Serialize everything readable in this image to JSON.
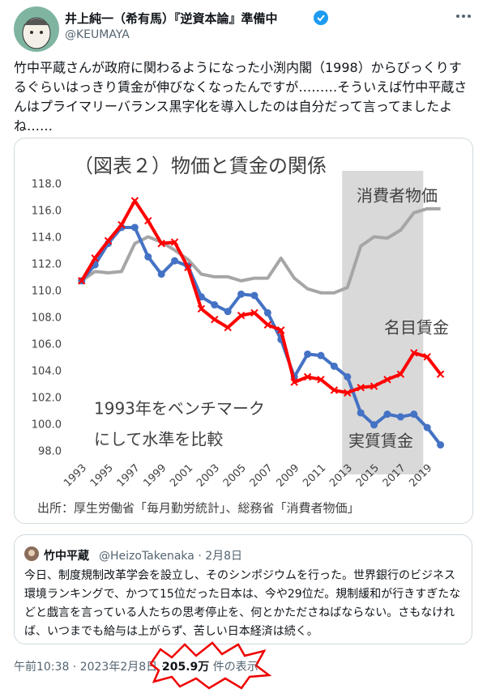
{
  "tweet": {
    "name": "井上純一（希有馬）『逆資本論』準備中",
    "handle": "@KEUMAYA",
    "text": "竹中平蔵さんが政府に関わるようになった小渕内閣（1998）からびっくりするぐらいはっきり賃金が伸びなくなったんですが………そういえば竹中平蔵さんはプライマリーバランス黒字化を導入したのは自分だって言ってましたよね……",
    "timestamp": "午前10:38 · 2023年2月8日 ·",
    "views": "205.9万",
    "views_label": "件の表示"
  },
  "chart_data": {
    "type": "line",
    "title": "（図表２）物価と賃金の関係",
    "source": "出所：厚生労働省「毎月勤労統計」、総務省「消費者物価」",
    "annotation": [
      "1993年をベンチマーク",
      "にして水準を比較"
    ],
    "x": [
      1993,
      1994,
      1995,
      1996,
      1997,
      1998,
      1999,
      2000,
      2001,
      2002,
      2003,
      2004,
      2005,
      2006,
      2007,
      2008,
      2009,
      2010,
      2011,
      2012,
      2013,
      2014,
      2015,
      2016,
      2017,
      2018,
      2019,
      2020
    ],
    "series": [
      {
        "name": "消費者物価",
        "color": "#a6a6a6",
        "marker": "none",
        "values": [
          110.8,
          111.5,
          111.4,
          111.5,
          113.6,
          114.1,
          113.7,
          113.1,
          112.4,
          111.3,
          111.1,
          111.1,
          110.8,
          111.0,
          111.0,
          112.5,
          111.0,
          110.2,
          109.9,
          109.9,
          110.3,
          113.4,
          114.1,
          114.0,
          114.6,
          115.9,
          116.2,
          116.2
        ]
      },
      {
        "name": "実質賃金",
        "color": "#4472c4",
        "marker": "circle",
        "values": [
          110.8,
          112.0,
          113.6,
          114.8,
          114.8,
          112.6,
          111.3,
          112.3,
          111.9,
          109.6,
          109.0,
          108.5,
          109.8,
          109.7,
          108.4,
          106.4,
          103.6,
          105.3,
          105.2,
          104.4,
          103.6,
          100.9,
          100.0,
          100.8,
          100.6,
          100.8,
          99.8,
          98.5
        ]
      },
      {
        "name": "名目賃金",
        "color": "#ff0000",
        "marker": "x",
        "values": [
          110.8,
          112.5,
          113.8,
          115.0,
          116.8,
          115.3,
          113.6,
          113.7,
          111.8,
          108.7,
          107.9,
          107.3,
          108.2,
          108.4,
          107.5,
          107.1,
          103.2,
          103.6,
          103.4,
          102.6,
          102.4,
          102.8,
          102.9,
          103.4,
          103.8,
          105.4,
          105.1,
          103.8
        ]
      }
    ],
    "xlim": [
      1992.1,
      2021
    ],
    "xticks": [
      1993,
      1995,
      1997,
      1999,
      2001,
      2003,
      2005,
      2007,
      2009,
      2011,
      2013,
      2015,
      2017,
      2019
    ],
    "ylim": [
      97.5,
      118.5
    ],
    "yticks": [
      {
        "value": 98,
        "label": "98.0"
      },
      {
        "value": 100,
        "label": "100.0"
      },
      {
        "value": 102,
        "label": "102.0"
      },
      {
        "value": 104,
        "label": "104.0"
      },
      {
        "value": 106,
        "label": "106.0"
      },
      {
        "value": 108,
        "label": "108.0"
      },
      {
        "value": 110,
        "label": "110.0"
      },
      {
        "value": 112,
        "label": "112.0"
      },
      {
        "value": 114,
        "label": "114.0"
      },
      {
        "value": 116,
        "label": "116.0"
      },
      {
        "value": 118,
        "label": "118.0"
      }
    ],
    "shaded_xrange": [
      2012.6,
      2018.7
    ],
    "shade_color": "#d9d9d9",
    "grid": false
  },
  "quote": {
    "name": "竹中平蔵",
    "meta": "@HeizoTakenaka · 2月8日",
    "text": "今日、制度規制改革学会を設立し、そのシンポジウムを行った。世界銀行のビジネス環境ランキングで、かつて15位だった日本は、今や29位だ。規制緩和が行きすぎたなどと戯言を言っている人たちの思考停止を、何とかたださねばならない。さもなければ、いつまでも給与は上がらず、苦しい日本経済は続く。"
  }
}
